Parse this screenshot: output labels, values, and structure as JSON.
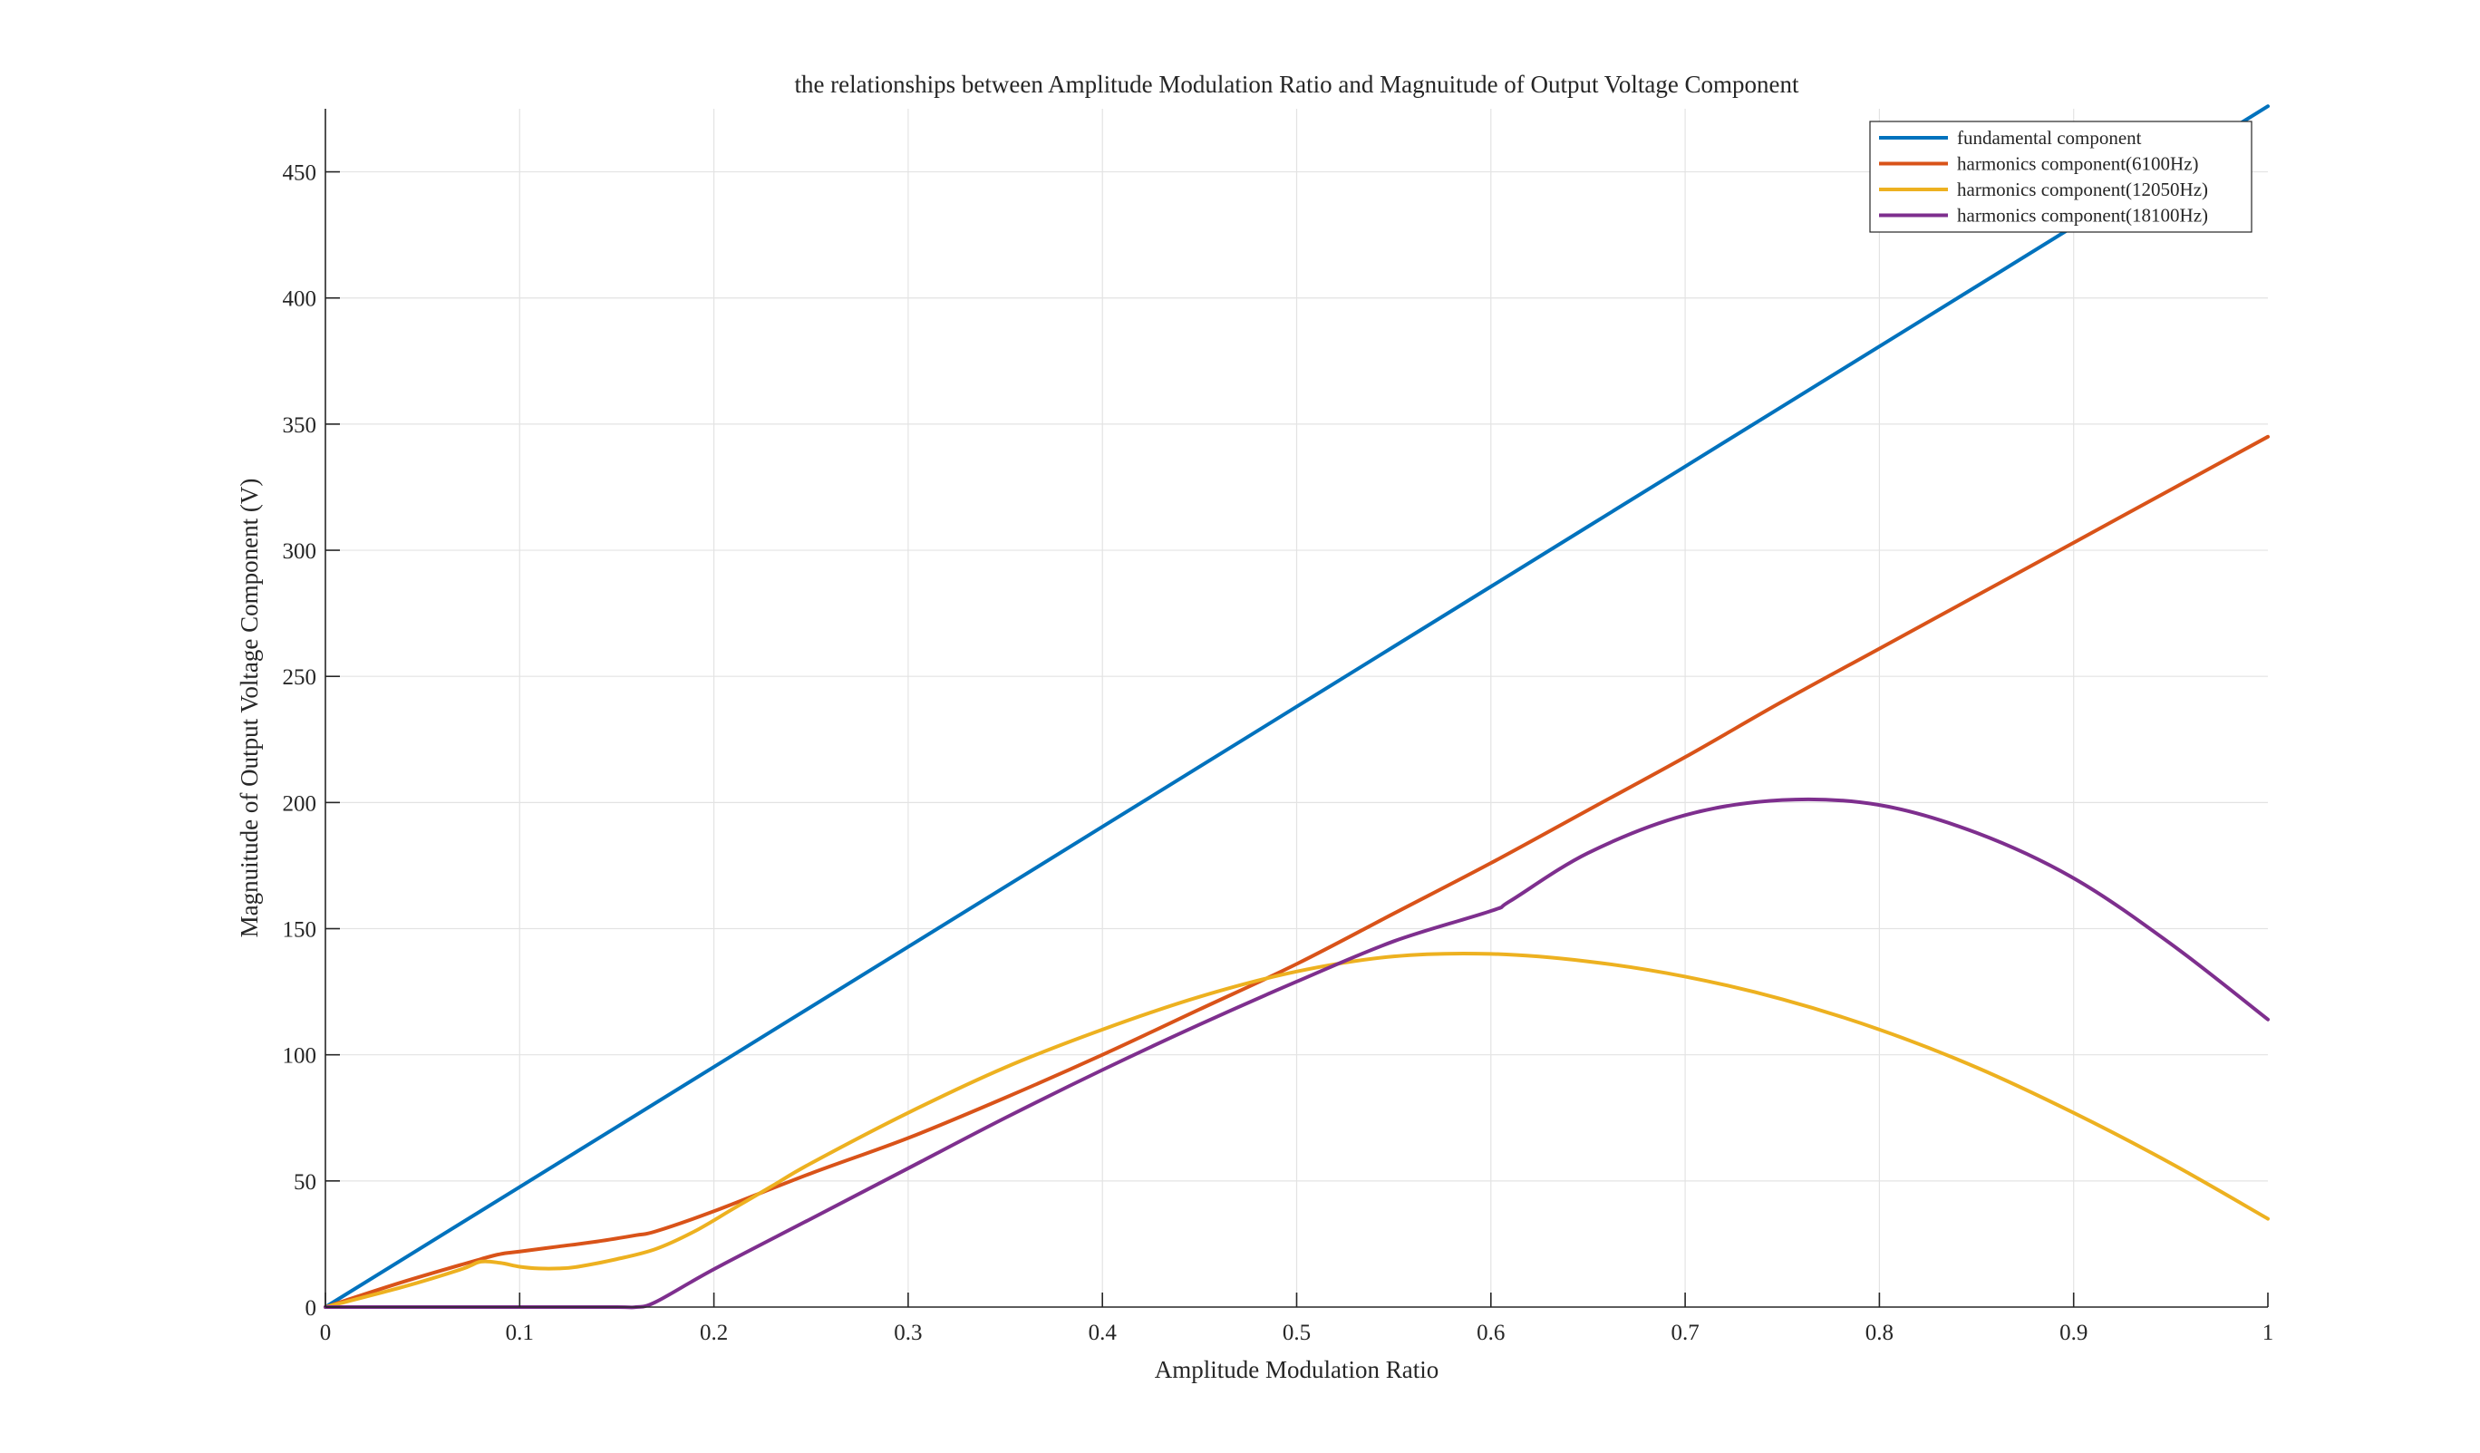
{
  "chart_data": {
    "type": "line",
    "title": "the relationships between Amplitude Modulation Ratio and Magnuitude of Output Voltage Component",
    "xlabel": "Amplitude Modulation Ratio",
    "ylabel": "Magnuitude of Output Voltage Component (V)",
    "xlim": [
      0,
      1
    ],
    "ylim": [
      0,
      475
    ],
    "xticks": [
      0,
      0.1,
      0.2,
      0.3,
      0.4,
      0.5,
      0.6,
      0.7,
      0.8,
      0.9,
      1
    ],
    "xtick_labels": [
      "0",
      "0.1",
      "0.2",
      "0.3",
      "0.4",
      "0.5",
      "0.6",
      "0.7",
      "0.8",
      "0.9",
      "1"
    ],
    "yticks": [
      0,
      50,
      100,
      150,
      200,
      250,
      300,
      350,
      400,
      450
    ],
    "ytick_labels": [
      "0",
      "50",
      "100",
      "150",
      "200",
      "250",
      "300",
      "350",
      "400",
      "450"
    ],
    "grid": true,
    "legend_position": "top-right",
    "series": [
      {
        "name": "fundamental component",
        "color": "#0072BD",
        "x": [
          0,
          0.1,
          0.2,
          0.3,
          0.4,
          0.5,
          0.6,
          0.7,
          0.8,
          0.9,
          1.0
        ],
        "y": [
          0,
          47.6,
          95.2,
          142.8,
          190.4,
          238,
          285.6,
          333.2,
          380.8,
          428.4,
          476
        ]
      },
      {
        "name": "harmonics component(6100Hz)",
        "color": "#D95319",
        "x": [
          0,
          0.04,
          0.08,
          0.09,
          0.1,
          0.12,
          0.14,
          0.16,
          0.17,
          0.2,
          0.25,
          0.3,
          0.35,
          0.4,
          0.45,
          0.5,
          0.55,
          0.6,
          0.65,
          0.7,
          0.75,
          0.8,
          0.85,
          0.9,
          0.95,
          1.0
        ],
        "y": [
          0,
          10,
          19,
          21,
          22,
          24,
          26,
          28.5,
          30,
          38,
          53,
          67,
          83,
          100,
          118,
          136,
          156,
          176,
          197,
          218,
          240,
          261,
          282,
          303,
          324,
          345
        ]
      },
      {
        "name": "harmonics component(12050Hz)",
        "color": "#EDB120",
        "x": [
          0,
          0.04,
          0.07,
          0.08,
          0.09,
          0.1,
          0.11,
          0.12,
          0.13,
          0.15,
          0.17,
          0.19,
          0.21,
          0.23,
          0.25,
          0.3,
          0.35,
          0.4,
          0.45,
          0.5,
          0.55,
          0.6,
          0.65,
          0.7,
          0.75,
          0.8,
          0.85,
          0.9,
          0.95,
          1.0
        ],
        "y": [
          0,
          8,
          15,
          18,
          17.5,
          16,
          15.3,
          15.3,
          16,
          19,
          23,
          30,
          39,
          48,
          57,
          77,
          95,
          110,
          123,
          133,
          139,
          140,
          137,
          131,
          122,
          110,
          95,
          77,
          57,
          35
        ]
      },
      {
        "name": "harmonics component(18100Hz)",
        "color": "#7E2F8E",
        "x": [
          0,
          0.05,
          0.1,
          0.15,
          0.16,
          0.17,
          0.2,
          0.25,
          0.3,
          0.35,
          0.4,
          0.45,
          0.5,
          0.55,
          0.6,
          0.61,
          0.65,
          0.7,
          0.75,
          0.8,
          0.85,
          0.9,
          0.95,
          1.0
        ],
        "y": [
          0,
          0,
          0,
          0,
          0,
          2,
          15,
          35,
          55,
          75,
          94,
          112,
          129,
          145,
          157,
          161,
          180,
          195,
          201,
          199,
          188,
          170,
          144,
          114
        ]
      }
    ]
  }
}
